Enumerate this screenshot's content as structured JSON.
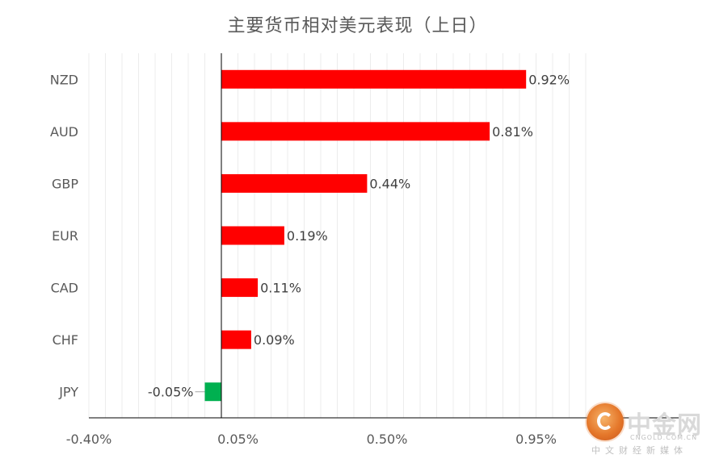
{
  "chart_data": {
    "type": "bar",
    "orientation": "horizontal",
    "title": "主要货币相对美元表现（上日）",
    "categories": [
      "NZD",
      "AUD",
      "GBP",
      "EUR",
      "CAD",
      "CHF",
      "JPY"
    ],
    "values": [
      0.92,
      0.81,
      0.44,
      0.19,
      0.11,
      0.09,
      -0.05
    ],
    "data_labels": [
      "0.92%",
      "0.81%",
      "0.44%",
      "0.19%",
      "0.11%",
      "0.09%",
      "-0.05%"
    ],
    "x_ticks": [
      -0.4,
      0.05,
      0.5,
      0.95
    ],
    "x_tick_labels": [
      "-0.40%",
      "0.05%",
      "0.50%",
      "0.95%"
    ],
    "xlim": [
      -0.4,
      0.95
    ],
    "colors": {
      "positive": "#ff0000",
      "negative": "#00b050",
      "gridline": "#ececec",
      "axis": "#000000",
      "text": "#595959",
      "label": "#404040"
    },
    "grid": true,
    "legend": "none"
  },
  "watermark": {
    "name": "中金网",
    "url": "CNGOLD.COM.CN",
    "slogan": "中文财经新媒体"
  }
}
